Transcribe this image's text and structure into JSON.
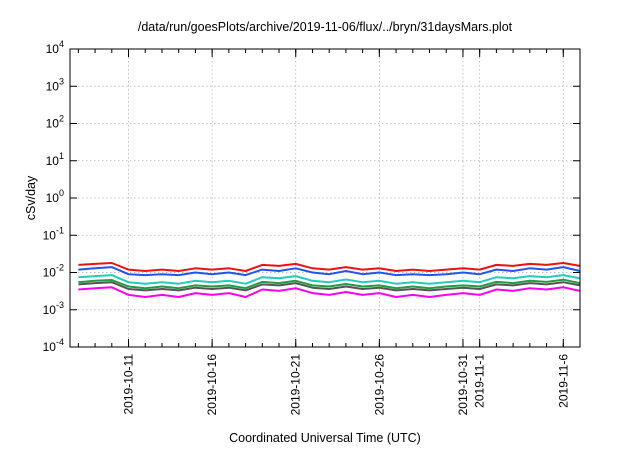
{
  "chart_data": {
    "type": "line",
    "title": "/data/run/goesPlots/archive/2019-11-06/flux/../bryn/31daysMars.plot",
    "xlabel": "Coordinated Universal Time (UTC)",
    "ylabel": "cSv/day",
    "yscale": "log",
    "ylim": [
      0.0001,
      10000
    ],
    "xlim": [
      "2019-10-07T12:00",
      "2019-11-07T00:00"
    ],
    "grid": true,
    "y_ticks": [
      {
        "value": 0.0001,
        "base": "10",
        "exp": "-4"
      },
      {
        "value": 0.001,
        "base": "10",
        "exp": "-3"
      },
      {
        "value": 0.01,
        "base": "10",
        "exp": "-2"
      },
      {
        "value": 0.1,
        "base": "10",
        "exp": "-1"
      },
      {
        "value": 1,
        "base": "10",
        "exp": "0"
      },
      {
        "value": 10,
        "base": "10",
        "exp": "1"
      },
      {
        "value": 100,
        "base": "10",
        "exp": "2"
      },
      {
        "value": 1000,
        "base": "10",
        "exp": "3"
      },
      {
        "value": 10000,
        "base": "10",
        "exp": "4"
      }
    ],
    "x_ticks": [
      {
        "value": "2019-10-11",
        "label": "2019-10-11"
      },
      {
        "value": "2019-10-16",
        "label": "2019-10-16"
      },
      {
        "value": "2019-10-21",
        "label": "2019-10-21"
      },
      {
        "value": "2019-10-26",
        "label": "2019-10-26"
      },
      {
        "value": "2019-10-31",
        "label": "2019-10-31"
      },
      {
        "value": "2019-11-01",
        "label": "2019-11-1"
      },
      {
        "value": "2019-11-06",
        "label": "2019-11-6"
      }
    ],
    "x_dates": [
      "2019-10-08",
      "2019-10-09",
      "2019-10-10",
      "2019-10-11",
      "2019-10-12",
      "2019-10-13",
      "2019-10-14",
      "2019-10-15",
      "2019-10-16",
      "2019-10-17",
      "2019-10-18",
      "2019-10-19",
      "2019-10-20",
      "2019-10-21",
      "2019-10-22",
      "2019-10-23",
      "2019-10-24",
      "2019-10-25",
      "2019-10-26",
      "2019-10-27",
      "2019-10-28",
      "2019-10-29",
      "2019-10-30",
      "2019-10-31",
      "2019-11-01",
      "2019-11-02",
      "2019-11-03",
      "2019-11-04",
      "2019-11-05",
      "2019-11-06",
      "2019-11-07"
    ],
    "series": [
      {
        "color": "#ee1111",
        "values": [
          0.016,
          0.017,
          0.018,
          0.012,
          0.011,
          0.012,
          0.011,
          0.013,
          0.012,
          0.013,
          0.011,
          0.016,
          0.015,
          0.017,
          0.013,
          0.012,
          0.014,
          0.012,
          0.013,
          0.011,
          0.012,
          0.011,
          0.012,
          0.013,
          0.012,
          0.016,
          0.015,
          0.017,
          0.016,
          0.018,
          0.015
        ]
      },
      {
        "color": "#2255ee",
        "values": [
          0.012,
          0.013,
          0.014,
          0.009,
          0.0085,
          0.009,
          0.0085,
          0.01,
          0.009,
          0.01,
          0.0085,
          0.012,
          0.011,
          0.013,
          0.01,
          0.009,
          0.011,
          0.009,
          0.01,
          0.0085,
          0.009,
          0.0085,
          0.009,
          0.01,
          0.009,
          0.012,
          0.011,
          0.013,
          0.012,
          0.014,
          0.011
        ]
      },
      {
        "color": "#22ccbb",
        "values": [
          0.0075,
          0.008,
          0.0085,
          0.0055,
          0.005,
          0.0055,
          0.005,
          0.006,
          0.0055,
          0.006,
          0.005,
          0.0075,
          0.007,
          0.008,
          0.006,
          0.0055,
          0.0065,
          0.0055,
          0.006,
          0.005,
          0.0055,
          0.005,
          0.0055,
          0.006,
          0.0055,
          0.0075,
          0.007,
          0.008,
          0.0075,
          0.0085,
          0.007
        ]
      },
      {
        "color": "#229944",
        "values": [
          0.0055,
          0.006,
          0.0063,
          0.0042,
          0.0038,
          0.0042,
          0.0038,
          0.0045,
          0.0042,
          0.0045,
          0.0038,
          0.0056,
          0.0052,
          0.006,
          0.0045,
          0.0042,
          0.0049,
          0.0042,
          0.0045,
          0.0038,
          0.0042,
          0.0038,
          0.0042,
          0.0045,
          0.0042,
          0.0056,
          0.0052,
          0.006,
          0.0056,
          0.0064,
          0.0052
        ]
      },
      {
        "color": "#555555",
        "values": [
          0.0048,
          0.0052,
          0.0055,
          0.0036,
          0.0033,
          0.0036,
          0.0033,
          0.0039,
          0.0036,
          0.0039,
          0.0033,
          0.0048,
          0.0045,
          0.0052,
          0.0039,
          0.0036,
          0.0042,
          0.0036,
          0.0039,
          0.0033,
          0.0036,
          0.0033,
          0.0036,
          0.0039,
          0.0036,
          0.0048,
          0.0045,
          0.0052,
          0.0048,
          0.0055,
          0.0045
        ]
      },
      {
        "color": "#ff00ee",
        "values": [
          0.0035,
          0.0038,
          0.004,
          0.0025,
          0.0022,
          0.0025,
          0.0022,
          0.0028,
          0.0025,
          0.0028,
          0.0022,
          0.0035,
          0.0032,
          0.0038,
          0.0028,
          0.0025,
          0.003,
          0.0025,
          0.0028,
          0.0022,
          0.0025,
          0.0022,
          0.0025,
          0.0028,
          0.0025,
          0.0035,
          0.0032,
          0.0038,
          0.0035,
          0.004,
          0.0032
        ]
      }
    ]
  }
}
